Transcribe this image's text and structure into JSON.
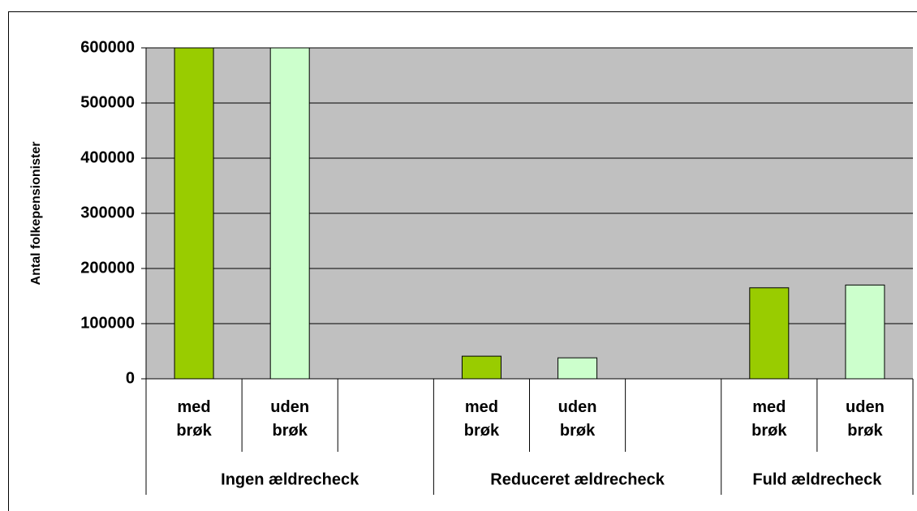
{
  "chart_data": {
    "type": "bar",
    "y_label": "Antal folkepensionister",
    "ylim": [
      0,
      600000
    ],
    "yticks": [
      0,
      100000,
      200000,
      300000,
      400000,
      500000,
      600000
    ],
    "grid": true,
    "groups": [
      {
        "name": "Ingen ældrecheck",
        "categories": [
          "med brøk",
          "uden brøk",
          null
        ],
        "values": [
          600000,
          600000,
          null
        ],
        "colors": [
          "#99cc00",
          "#ccffcc",
          null
        ]
      },
      {
        "name": "Reduceret ældrecheck",
        "categories": [
          "med brøk",
          "uden brøk",
          null
        ],
        "values": [
          41000,
          38000,
          null
        ],
        "colors": [
          "#99cc00",
          "#ccffcc",
          null
        ]
      },
      {
        "name": "Fuld ældrecheck",
        "categories": [
          "med brøk",
          "uden brøk"
        ],
        "values": [
          165000,
          170000
        ],
        "colors": [
          "#99cc00",
          "#ccffcc"
        ]
      }
    ]
  }
}
